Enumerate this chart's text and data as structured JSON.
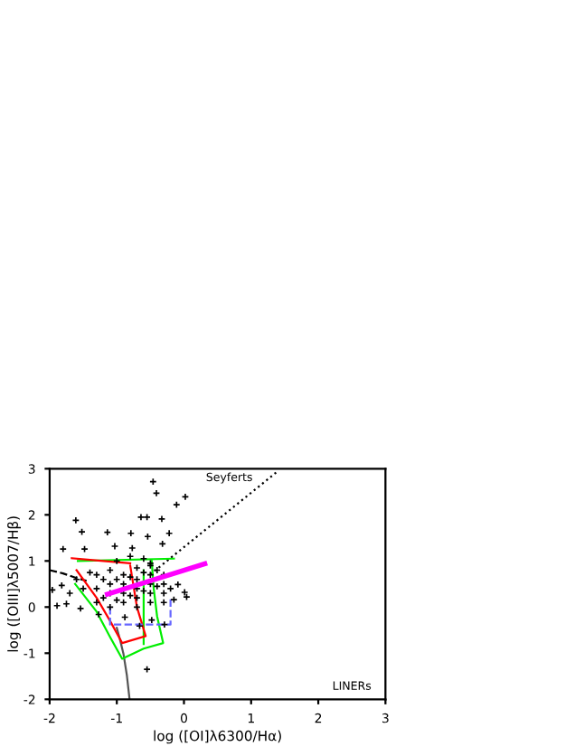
{
  "chart_data": {
    "type": "scatter",
    "xlabel": "log ([OI]λ6300/Hα)",
    "ylabel": "log ([OIII]λ5007/Hβ)",
    "xlim": [
      -2,
      3
    ],
    "ylim": [
      -2,
      3
    ],
    "xticks": [
      -2,
      -1,
      0,
      1,
      2,
      3
    ],
    "yticks": [
      -2,
      -1,
      0,
      1,
      2,
      3
    ],
    "grid": false,
    "legend": false,
    "annotations": [
      "Seyferts",
      "LINERs"
    ],
    "series": [
      {
        "type": "line",
        "color": "#000000",
        "line_style": "dotted",
        "marker": "none",
        "x": [
          -0.5,
          1.4
        ],
        "values": [
          0.71,
          2.95
        ]
      },
      {
        "type": "line",
        "color": "#000000",
        "line_style": "dashed",
        "marker": "none",
        "x": [
          -2,
          -1.8,
          -1.6,
          -1.45
        ],
        "values": [
          0.8,
          0.73,
          0.63,
          0.57
        ]
      },
      {
        "type": "line",
        "color": "#555555",
        "line_style": "solid",
        "marker": "none",
        "x": [
          -1.0,
          -0.95,
          -0.9,
          -0.85,
          -0.81
        ],
        "values": [
          -0.45,
          -0.72,
          -1.02,
          -1.48,
          -2
        ]
      },
      {
        "type": "line",
        "color": "#00ee00",
        "line_style": "solid",
        "marker": "none",
        "x": [
          -1.58,
          -0.15,
          null,
          -1.62,
          -1.3,
          -1.1,
          -0.92,
          -0.6,
          -0.31,
          -0.4,
          -0.45,
          -0.48,
          null,
          -0.6,
          -0.6
        ],
        "values": [
          1.0,
          1.05,
          null,
          0.5,
          -0.1,
          -0.65,
          -1.12,
          -0.9,
          -0.78,
          -0.2,
          0.4,
          1.0,
          null,
          0.8,
          -0.8
        ]
      },
      {
        "type": "line",
        "color": "#ff0000",
        "line_style": "solid",
        "marker": "none",
        "x": [
          -1.67,
          -1.2,
          -0.8,
          null,
          -1.6,
          -1.3,
          -1.1,
          -0.92,
          -0.57,
          -0.7,
          -0.8
        ],
        "values": [
          1.06,
          1.0,
          0.95,
          null,
          0.8,
          0.2,
          -0.3,
          -0.78,
          -0.63,
          0.0,
          0.9
        ]
      },
      {
        "type": "line",
        "color": "#6666ff",
        "line_style": "dashed",
        "marker": "none",
        "x": [
          -1.1,
          -1.1,
          -0.2,
          -0.2
        ],
        "values": [
          0.0,
          -0.38,
          -0.38,
          0.22
        ]
      },
      {
        "color": "#000000",
        "marker": "cross",
        "x": [
          -0.46,
          -0.41,
          0.02,
          -0.11,
          -1.61,
          -1.52,
          -1.14,
          -0.79,
          -0.54,
          -0.33,
          -0.64,
          -0.55,
          -0.22,
          -1.03,
          -0.32,
          -1.8,
          -1.48,
          -0.77,
          -0.55,
          -1.96,
          -1.89,
          -1.75,
          -1.82,
          -1.54,
          -1.27,
          0.01,
          0.04,
          -0.09,
          -0.29,
          -0.66,
          -0.48,
          -0.88,
          -0.15,
          -1.0,
          -0.8,
          -0.6,
          -0.5,
          -1.4,
          -1.6,
          -1.7,
          -1.5,
          -1.3,
          -1.3,
          -1.3,
          -1.1,
          -1.1,
          -1.1,
          -1.1,
          -0.9,
          -0.9,
          -0.9,
          -0.9,
          -0.7,
          -0.7,
          -0.7,
          -0.7,
          -0.7,
          -0.5,
          -0.5,
          -0.5,
          -0.5,
          -0.5,
          -0.3,
          -0.3,
          -0.3,
          -0.3,
          -1.2,
          -1.0,
          -0.8,
          -0.6,
          -0.4,
          -1.2,
          -1.0,
          -0.8,
          -0.6,
          -0.4,
          -0.2
        ],
        "values": [
          2.72,
          2.47,
          2.39,
          2.22,
          1.88,
          1.63,
          1.62,
          1.6,
          1.53,
          1.91,
          1.95,
          1.95,
          1.6,
          1.32,
          1.37,
          1.26,
          1.26,
          1.28,
          -1.35,
          0.37,
          0.03,
          0.07,
          0.47,
          -0.03,
          -0.16,
          0.32,
          0.22,
          0.49,
          -0.38,
          -0.41,
          -0.28,
          -0.22,
          0.16,
          1.0,
          1.1,
          1.05,
          0.95,
          0.75,
          0.6,
          0.3,
          0.4,
          0.1,
          0.4,
          0.7,
          0.0,
          0.3,
          0.5,
          0.8,
          0.1,
          0.3,
          0.5,
          0.7,
          0.0,
          0.2,
          0.4,
          0.6,
          0.85,
          0.1,
          0.3,
          0.5,
          0.7,
          0.9,
          0.1,
          0.3,
          0.5,
          0.7,
          0.2,
          0.15,
          0.25,
          0.35,
          0.45,
          0.6,
          0.6,
          0.65,
          0.75,
          0.8,
          0.4
        ]
      },
      {
        "type": "line",
        "color": "#ff00ff",
        "line_style": "solid",
        "marker": "none",
        "x": [
          -1.14,
          0.31
        ],
        "values": [
          0.28,
          0.94
        ]
      }
    ]
  }
}
